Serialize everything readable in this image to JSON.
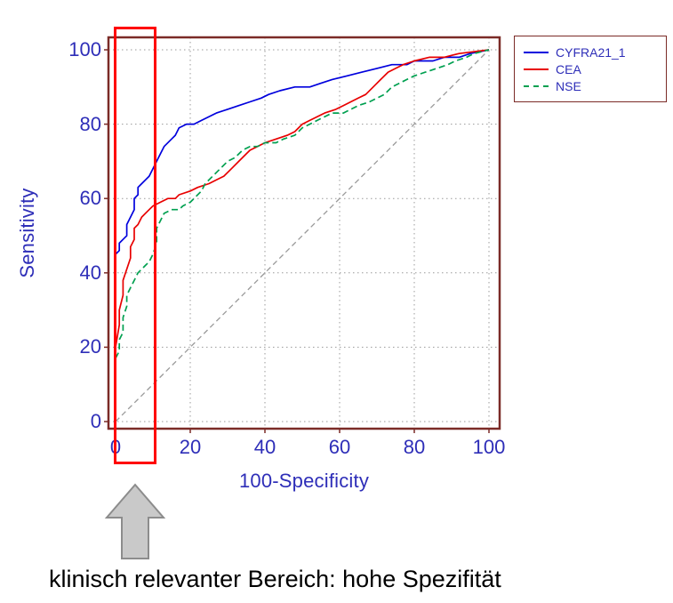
{
  "chart_data": {
    "type": "line",
    "title": "",
    "xlabel": "100-Specificity",
    "ylabel": "Sensitivity",
    "xlim": [
      0,
      100
    ],
    "ylim": [
      0,
      100
    ],
    "xticks": [
      0,
      20,
      40,
      60,
      80,
      100
    ],
    "yticks": [
      0,
      20,
      40,
      60,
      80,
      100
    ],
    "grid": "dotted",
    "diagonal_reference": true,
    "legend_position": "outside-top-right",
    "series": [
      {
        "name": "CYFRA21_1",
        "color": "#0000dd",
        "dash": "solid",
        "points": [
          [
            0,
            44
          ],
          [
            0,
            45
          ],
          [
            1,
            46
          ],
          [
            1,
            48
          ],
          [
            2,
            49
          ],
          [
            3,
            50
          ],
          [
            3,
            53
          ],
          [
            4,
            55
          ],
          [
            5,
            57
          ],
          [
            5,
            60
          ],
          [
            6,
            61
          ],
          [
            6,
            63
          ],
          [
            7,
            64
          ],
          [
            8,
            65
          ],
          [
            9,
            66
          ],
          [
            10,
            68
          ],
          [
            11,
            70
          ],
          [
            12,
            72
          ],
          [
            13,
            74
          ],
          [
            15,
            76
          ],
          [
            16,
            77
          ],
          [
            17,
            79
          ],
          [
            19,
            80
          ],
          [
            21,
            80
          ],
          [
            23,
            81
          ],
          [
            25,
            82
          ],
          [
            27,
            83
          ],
          [
            30,
            84
          ],
          [
            33,
            85
          ],
          [
            36,
            86
          ],
          [
            39,
            87
          ],
          [
            41,
            88
          ],
          [
            44,
            89
          ],
          [
            48,
            90
          ],
          [
            52,
            90
          ],
          [
            55,
            91
          ],
          [
            58,
            92
          ],
          [
            62,
            93
          ],
          [
            66,
            94
          ],
          [
            70,
            95
          ],
          [
            74,
            96
          ],
          [
            78,
            96
          ],
          [
            80,
            97
          ],
          [
            85,
            97
          ],
          [
            88,
            98
          ],
          [
            92,
            98
          ],
          [
            95,
            99
          ],
          [
            100,
            100
          ]
        ]
      },
      {
        "name": "CEA",
        "color": "#e80000",
        "dash": "solid",
        "points": [
          [
            0,
            14
          ],
          [
            0,
            20
          ],
          [
            1,
            26
          ],
          [
            1,
            30
          ],
          [
            2,
            34
          ],
          [
            2,
            38
          ],
          [
            3,
            41
          ],
          [
            4,
            44
          ],
          [
            4,
            47
          ],
          [
            5,
            49
          ],
          [
            5,
            52
          ],
          [
            6,
            53
          ],
          [
            7,
            55
          ],
          [
            8,
            56
          ],
          [
            9,
            57
          ],
          [
            10,
            58
          ],
          [
            12,
            59
          ],
          [
            14,
            60
          ],
          [
            16,
            60
          ],
          [
            17,
            61
          ],
          [
            20,
            62
          ],
          [
            22,
            63
          ],
          [
            25,
            64
          ],
          [
            27,
            65
          ],
          [
            29,
            66
          ],
          [
            31,
            68
          ],
          [
            33,
            70
          ],
          [
            35,
            72
          ],
          [
            36,
            73
          ],
          [
            38,
            74
          ],
          [
            40,
            75
          ],
          [
            43,
            76
          ],
          [
            46,
            77
          ],
          [
            48,
            78
          ],
          [
            50,
            80
          ],
          [
            52,
            81
          ],
          [
            54,
            82
          ],
          [
            56,
            83
          ],
          [
            59,
            84
          ],
          [
            61,
            85
          ],
          [
            63,
            86
          ],
          [
            65,
            87
          ],
          [
            67,
            88
          ],
          [
            69,
            90
          ],
          [
            71,
            92
          ],
          [
            73,
            94
          ],
          [
            75,
            95
          ],
          [
            77,
            96
          ],
          [
            80,
            97
          ],
          [
            84,
            98
          ],
          [
            88,
            98
          ],
          [
            92,
            99
          ],
          [
            100,
            100
          ]
        ]
      },
      {
        "name": "NSE",
        "color": "#00a050",
        "dash": "dashed",
        "points": [
          [
            0,
            17
          ],
          [
            1,
            19
          ],
          [
            1,
            22
          ],
          [
            2,
            24
          ],
          [
            2,
            28
          ],
          [
            3,
            31
          ],
          [
            3,
            34
          ],
          [
            4,
            36
          ],
          [
            5,
            38
          ],
          [
            6,
            40
          ],
          [
            7,
            41
          ],
          [
            8,
            42
          ],
          [
            9,
            43
          ],
          [
            10,
            45
          ],
          [
            11,
            48
          ],
          [
            11,
            52
          ],
          [
            12,
            54
          ],
          [
            13,
            56
          ],
          [
            15,
            57
          ],
          [
            17,
            57
          ],
          [
            18,
            58
          ],
          [
            20,
            59
          ],
          [
            21,
            60
          ],
          [
            23,
            62
          ],
          [
            24,
            64
          ],
          [
            26,
            66
          ],
          [
            28,
            68
          ],
          [
            30,
            70
          ],
          [
            32,
            71
          ],
          [
            34,
            73
          ],
          [
            36,
            74
          ],
          [
            38,
            74
          ],
          [
            40,
            75
          ],
          [
            43,
            75
          ],
          [
            45,
            76
          ],
          [
            48,
            77
          ],
          [
            50,
            79
          ],
          [
            52,
            80
          ],
          [
            54,
            81
          ],
          [
            56,
            82
          ],
          [
            58,
            83
          ],
          [
            61,
            83
          ],
          [
            63,
            84
          ],
          [
            65,
            85
          ],
          [
            68,
            86
          ],
          [
            70,
            87
          ],
          [
            72,
            88
          ],
          [
            74,
            90
          ],
          [
            76,
            91
          ],
          [
            78,
            92
          ],
          [
            80,
            93
          ],
          [
            83,
            94
          ],
          [
            86,
            95
          ],
          [
            89,
            96
          ],
          [
            91,
            97
          ],
          [
            94,
            98
          ],
          [
            96,
            99
          ],
          [
            100,
            100
          ]
        ]
      }
    ]
  },
  "annotations": {
    "highlight_box": {
      "meaning": "clinically relevant region (high specificity)",
      "x_range": [
        0,
        10
      ],
      "color": "#ff0000"
    },
    "arrow": "up-arrow pointing at highlighted low 100-Specificity region",
    "caption": "klinisch relevanter Bereich: hohe Spezifität"
  },
  "colors": {
    "axis_text": "#2e2eb8",
    "plot_border": "#7b2b27",
    "grid": "#999999",
    "diagonal": "#9a9a9a",
    "highlight": "#ff0000",
    "arrow_fill": "#c9c9c9",
    "arrow_stroke": "#8c8c8c"
  }
}
